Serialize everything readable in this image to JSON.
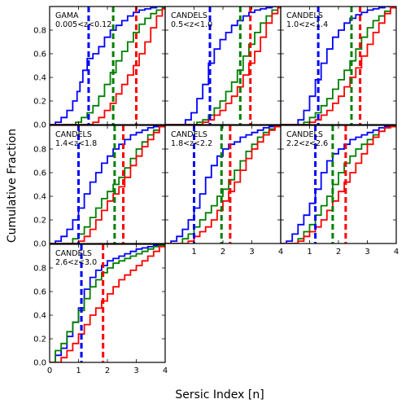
{
  "figure": {
    "xlabel": "Sersic Index [n]",
    "ylabel": "Cumulative Fraction"
  },
  "colors": {
    "blue": "#0000ff",
    "green": "#007f00",
    "red": "#ff0000"
  },
  "chart_data": [
    {
      "type": "line",
      "step": true,
      "title_line1": "GAMA",
      "title_line2": "0.005<z<0.12",
      "xlim": [
        0,
        4
      ],
      "ylim": [
        0,
        1
      ],
      "x_ticks": [],
      "x_tick_labels": [],
      "y_ticks": [
        0,
        0.2,
        0.4,
        0.6,
        0.8
      ],
      "y_tick_labels": [
        "0.0",
        "0.2",
        "0.4",
        "0.6",
        "0.8"
      ],
      "medians": {
        "blue": 1.35,
        "green": 2.2,
        "red": 3.0
      },
      "series": [
        {
          "color": "blue",
          "x": [
            0.2,
            0.4,
            0.6,
            0.8,
            0.95,
            1.05,
            1.15,
            1.3,
            1.5,
            1.7,
            1.9,
            2.1,
            2.3,
            2.5,
            2.7,
            2.9,
            3.1,
            3.3,
            3.5,
            3.7,
            3.9
          ],
          "y": [
            0.02,
            0.06,
            0.12,
            0.2,
            0.28,
            0.36,
            0.46,
            0.56,
            0.6,
            0.66,
            0.74,
            0.8,
            0.84,
            0.88,
            0.92,
            0.95,
            0.97,
            0.98,
            0.99,
            1.0,
            1.0
          ]
        },
        {
          "color": "green",
          "x": [
            0.9,
            1.1,
            1.3,
            1.5,
            1.7,
            1.9,
            2.1,
            2.3,
            2.5,
            2.7,
            2.9,
            3.1,
            3.3,
            3.5,
            3.7,
            3.9
          ],
          "y": [
            0.02,
            0.06,
            0.1,
            0.16,
            0.24,
            0.34,
            0.44,
            0.54,
            0.62,
            0.7,
            0.78,
            0.85,
            0.9,
            0.94,
            0.97,
            0.99
          ]
        },
        {
          "color": "red",
          "x": [
            1.5,
            1.7,
            1.9,
            2.1,
            2.3,
            2.5,
            2.7,
            2.9,
            3.1,
            3.3,
            3.5,
            3.7,
            3.9
          ],
          "y": [
            0.02,
            0.06,
            0.12,
            0.18,
            0.26,
            0.34,
            0.42,
            0.5,
            0.6,
            0.7,
            0.82,
            0.92,
            0.98
          ]
        }
      ]
    },
    {
      "type": "line",
      "step": true,
      "title_line1": "CANDELS",
      "title_line2": "0.5<z<1.0",
      "xlim": [
        0,
        4
      ],
      "ylim": [
        0,
        1
      ],
      "x_ticks": [],
      "x_tick_labels": [],
      "y_ticks": [],
      "y_tick_labels": [],
      "medians": {
        "blue": 1.55,
        "green": 2.6,
        "red": 2.95
      },
      "series": [
        {
          "color": "blue",
          "x": [
            0.7,
            0.9,
            1.1,
            1.3,
            1.5,
            1.7,
            1.9,
            2.1,
            2.3,
            2.5,
            2.7,
            2.9,
            3.1,
            3.3,
            3.5,
            3.7,
            3.9
          ],
          "y": [
            0.04,
            0.1,
            0.22,
            0.34,
            0.52,
            0.64,
            0.72,
            0.78,
            0.84,
            0.88,
            0.92,
            0.95,
            0.97,
            0.98,
            0.99,
            1.0,
            1.0
          ]
        },
        {
          "color": "green",
          "x": [
            1.1,
            1.3,
            1.5,
            1.7,
            1.9,
            2.1,
            2.3,
            2.5,
            2.7,
            2.9,
            3.1,
            3.3,
            3.5,
            3.7,
            3.9
          ],
          "y": [
            0.02,
            0.04,
            0.08,
            0.14,
            0.2,
            0.28,
            0.36,
            0.46,
            0.58,
            0.68,
            0.78,
            0.86,
            0.92,
            0.97,
            0.99
          ]
        },
        {
          "color": "red",
          "x": [
            1.3,
            1.5,
            1.7,
            1.9,
            2.1,
            2.3,
            2.5,
            2.7,
            2.9,
            3.1,
            3.3,
            3.5,
            3.7,
            3.9
          ],
          "y": [
            0.02,
            0.04,
            0.08,
            0.12,
            0.18,
            0.24,
            0.32,
            0.42,
            0.52,
            0.62,
            0.74,
            0.86,
            0.94,
            0.99
          ]
        }
      ]
    },
    {
      "type": "line",
      "step": true,
      "title_line1": "CANDELS",
      "title_line2": "1.0<z<1.4",
      "xlim": [
        0,
        4
      ],
      "ylim": [
        0,
        1
      ],
      "x_ticks": [],
      "x_tick_labels": [],
      "y_ticks": [],
      "y_tick_labels": [],
      "medians": {
        "blue": 1.3,
        "green": 2.45,
        "red": 2.75
      },
      "series": [
        {
          "color": "blue",
          "x": [
            0.6,
            0.8,
            1.0,
            1.2,
            1.4,
            1.6,
            1.8,
            2.0,
            2.2,
            2.4,
            2.6,
            2.8,
            3.0,
            3.2,
            3.4,
            3.6,
            3.8
          ],
          "y": [
            0.04,
            0.12,
            0.24,
            0.38,
            0.52,
            0.64,
            0.74,
            0.8,
            0.86,
            0.9,
            0.93,
            0.95,
            0.97,
            0.98,
            0.99,
            1.0,
            1.0
          ]
        },
        {
          "color": "green",
          "x": [
            0.8,
            1.0,
            1.2,
            1.4,
            1.6,
            1.8,
            2.0,
            2.2,
            2.4,
            2.6,
            2.8,
            3.0,
            3.2,
            3.4,
            3.6,
            3.8
          ],
          "y": [
            0.02,
            0.06,
            0.1,
            0.16,
            0.22,
            0.3,
            0.38,
            0.46,
            0.54,
            0.64,
            0.74,
            0.82,
            0.88,
            0.92,
            0.96,
            0.99
          ]
        },
        {
          "color": "red",
          "x": [
            1.0,
            1.2,
            1.4,
            1.6,
            1.8,
            2.0,
            2.2,
            2.4,
            2.6,
            2.8,
            3.0,
            3.2,
            3.4,
            3.6,
            3.8
          ],
          "y": [
            0.02,
            0.04,
            0.08,
            0.12,
            0.18,
            0.24,
            0.32,
            0.4,
            0.48,
            0.58,
            0.68,
            0.78,
            0.86,
            0.94,
            0.99
          ]
        }
      ]
    },
    {
      "type": "line",
      "step": true,
      "title_line1": "CANDELS",
      "title_line2": "1.4<z<1.8",
      "xlim": [
        0,
        4
      ],
      "ylim": [
        0,
        1
      ],
      "x_ticks": [],
      "x_tick_labels": [],
      "y_ticks": [
        0,
        0.2,
        0.4,
        0.6,
        0.8
      ],
      "y_tick_labels": [
        "0.0",
        "0.2",
        "0.4",
        "0.6",
        "0.8"
      ],
      "medians": {
        "blue": 1.0,
        "green": 2.25,
        "red": 2.55
      },
      "series": [
        {
          "color": "blue",
          "x": [
            0.2,
            0.4,
            0.6,
            0.8,
            1.0,
            1.2,
            1.4,
            1.6,
            1.8,
            2.0,
            2.2,
            2.4,
            2.6,
            2.8,
            3.0,
            3.2,
            3.4,
            3.6,
            3.8
          ],
          "y": [
            0.02,
            0.06,
            0.12,
            0.2,
            0.3,
            0.42,
            0.52,
            0.6,
            0.68,
            0.74,
            0.8,
            0.84,
            0.88,
            0.92,
            0.94,
            0.96,
            0.98,
            0.99,
            1.0
          ]
        },
        {
          "color": "green",
          "x": [
            0.8,
            1.0,
            1.2,
            1.4,
            1.6,
            1.8,
            2.0,
            2.2,
            2.4,
            2.6,
            2.8,
            3.0,
            3.2,
            3.4,
            3.6,
            3.8
          ],
          "y": [
            0.04,
            0.08,
            0.14,
            0.22,
            0.3,
            0.38,
            0.44,
            0.5,
            0.56,
            0.64,
            0.72,
            0.8,
            0.86,
            0.92,
            0.96,
            0.99
          ]
        },
        {
          "color": "red",
          "x": [
            1.0,
            1.2,
            1.4,
            1.6,
            1.8,
            2.0,
            2.2,
            2.4,
            2.6,
            2.8,
            3.0,
            3.2,
            3.4,
            3.6,
            3.8
          ],
          "y": [
            0.02,
            0.06,
            0.12,
            0.2,
            0.28,
            0.36,
            0.42,
            0.48,
            0.56,
            0.66,
            0.74,
            0.82,
            0.88,
            0.94,
            0.99
          ]
        }
      ]
    },
    {
      "type": "line",
      "step": true,
      "title_line1": "CANDELS",
      "title_line2": "1.8<z<2.2",
      "xlim": [
        0,
        4
      ],
      "ylim": [
        0,
        1
      ],
      "x_ticks": [
        1,
        2,
        3,
        4
      ],
      "x_tick_labels": [
        "1",
        "2",
        "3",
        "4"
      ],
      "y_ticks": [],
      "y_tick_labels": [],
      "medians": {
        "blue": 1.0,
        "green": 1.95,
        "red": 2.25
      },
      "series": [
        {
          "color": "blue",
          "x": [
            0.2,
            0.4,
            0.6,
            0.8,
            1.0,
            1.2,
            1.4,
            1.6,
            1.8,
            2.0,
            2.2,
            2.4,
            2.6,
            2.8,
            3.0,
            3.2,
            3.4,
            3.6,
            3.8
          ],
          "y": [
            0.02,
            0.06,
            0.12,
            0.2,
            0.3,
            0.42,
            0.56,
            0.66,
            0.74,
            0.8,
            0.84,
            0.86,
            0.9,
            0.92,
            0.94,
            0.96,
            0.98,
            0.99,
            1.0
          ]
        },
        {
          "color": "green",
          "x": [
            0.6,
            0.8,
            1.0,
            1.2,
            1.4,
            1.6,
            1.8,
            2.0,
            2.2,
            2.4,
            2.6,
            2.8,
            3.0,
            3.2,
            3.4,
            3.6,
            3.8
          ],
          "y": [
            0.04,
            0.08,
            0.14,
            0.2,
            0.26,
            0.32,
            0.4,
            0.46,
            0.54,
            0.62,
            0.7,
            0.78,
            0.84,
            0.9,
            0.94,
            0.97,
            0.99
          ]
        },
        {
          "color": "red",
          "x": [
            0.8,
            1.0,
            1.2,
            1.4,
            1.6,
            1.8,
            2.0,
            2.2,
            2.4,
            2.6,
            2.8,
            3.0,
            3.2,
            3.4,
            3.6,
            3.8
          ],
          "y": [
            0.02,
            0.06,
            0.1,
            0.14,
            0.2,
            0.28,
            0.36,
            0.44,
            0.52,
            0.62,
            0.72,
            0.8,
            0.86,
            0.92,
            0.96,
            0.99
          ]
        }
      ]
    },
    {
      "type": "line",
      "step": true,
      "title_line1": "CANDELS",
      "title_line2": "2.2<z<2.6",
      "xlim": [
        0,
        4
      ],
      "ylim": [
        0,
        1
      ],
      "x_ticks": [
        1,
        2,
        3,
        4
      ],
      "x_tick_labels": [
        "1",
        "2",
        "3",
        "4"
      ],
      "y_ticks": [],
      "y_tick_labels": [],
      "medians": {
        "blue": 1.2,
        "green": 1.8,
        "red": 2.25
      },
      "series": [
        {
          "color": "blue",
          "x": [
            0.2,
            0.4,
            0.6,
            0.8,
            1.0,
            1.2,
            1.4,
            1.6,
            1.8,
            2.0,
            2.2,
            2.4,
            2.6,
            2.8,
            3.0,
            3.2,
            3.4,
            3.6,
            3.8
          ],
          "y": [
            0.02,
            0.08,
            0.16,
            0.24,
            0.34,
            0.46,
            0.6,
            0.7,
            0.76,
            0.8,
            0.84,
            0.88,
            0.9,
            0.92,
            0.94,
            0.96,
            0.98,
            0.99,
            1.0
          ]
        },
        {
          "color": "green",
          "x": [
            0.6,
            0.8,
            1.0,
            1.2,
            1.4,
            1.6,
            1.8,
            2.0,
            2.2,
            2.4,
            2.6,
            2.8,
            3.0,
            3.2,
            3.4,
            3.6,
            3.8
          ],
          "y": [
            0.04,
            0.1,
            0.16,
            0.24,
            0.32,
            0.4,
            0.5,
            0.6,
            0.68,
            0.74,
            0.8,
            0.84,
            0.88,
            0.92,
            0.95,
            0.98,
            0.99
          ]
        },
        {
          "color": "red",
          "x": [
            0.6,
            0.8,
            1.0,
            1.2,
            1.4,
            1.6,
            1.8,
            2.0,
            2.2,
            2.4,
            2.6,
            2.8,
            3.0,
            3.2,
            3.4,
            3.6,
            3.8
          ],
          "y": [
            0.02,
            0.06,
            0.1,
            0.14,
            0.2,
            0.28,
            0.36,
            0.44,
            0.52,
            0.6,
            0.68,
            0.76,
            0.84,
            0.9,
            0.95,
            0.98,
            0.99
          ]
        }
      ]
    },
    {
      "type": "line",
      "step": true,
      "title_line1": "CANDELS",
      "title_line2": "2.6<z<3.0",
      "xlim": [
        0,
        4
      ],
      "ylim": [
        0,
        1
      ],
      "x_ticks": [
        0,
        1,
        2,
        3,
        4
      ],
      "x_tick_labels": [
        "0",
        "1",
        "2",
        "3",
        "4"
      ],
      "y_ticks": [
        0,
        0.2,
        0.4,
        0.6,
        0.8
      ],
      "y_tick_labels": [
        "0.0",
        "0.2",
        "0.4",
        "0.6",
        "0.8"
      ],
      "medians": {
        "blue": 1.1,
        "green": 1.1,
        "red": 1.85
      },
      "series": [
        {
          "color": "blue",
          "x": [
            0.2,
            0.4,
            0.6,
            0.8,
            1.0,
            1.2,
            1.4,
            1.6,
            1.8,
            2.0,
            2.2,
            2.4,
            2.6,
            2.8,
            3.0,
            3.2,
            3.4,
            3.6,
            3.8
          ],
          "y": [
            0.06,
            0.12,
            0.22,
            0.34,
            0.46,
            0.62,
            0.72,
            0.78,
            0.82,
            0.86,
            0.88,
            0.9,
            0.92,
            0.94,
            0.96,
            0.97,
            0.98,
            0.99,
            1.0
          ]
        },
        {
          "color": "green",
          "x": [
            0.2,
            0.4,
            0.6,
            0.8,
            1.0,
            1.2,
            1.4,
            1.6,
            1.8,
            2.0,
            2.2,
            2.4,
            2.6,
            2.8,
            3.0,
            3.2,
            3.4,
            3.6,
            3.8
          ],
          "y": [
            0.1,
            0.16,
            0.26,
            0.34,
            0.44,
            0.54,
            0.64,
            0.7,
            0.76,
            0.8,
            0.84,
            0.86,
            0.88,
            0.9,
            0.92,
            0.94,
            0.96,
            0.98,
            0.99
          ]
        },
        {
          "color": "red",
          "x": [
            0.4,
            0.6,
            0.8,
            1.0,
            1.2,
            1.4,
            1.6,
            1.8,
            2.0,
            2.2,
            2.4,
            2.6,
            2.8,
            3.0,
            3.2,
            3.4,
            3.6,
            3.8
          ],
          "y": [
            0.04,
            0.1,
            0.16,
            0.24,
            0.32,
            0.4,
            0.46,
            0.52,
            0.58,
            0.64,
            0.7,
            0.74,
            0.78,
            0.82,
            0.86,
            0.9,
            0.94,
            0.98
          ]
        }
      ]
    }
  ]
}
